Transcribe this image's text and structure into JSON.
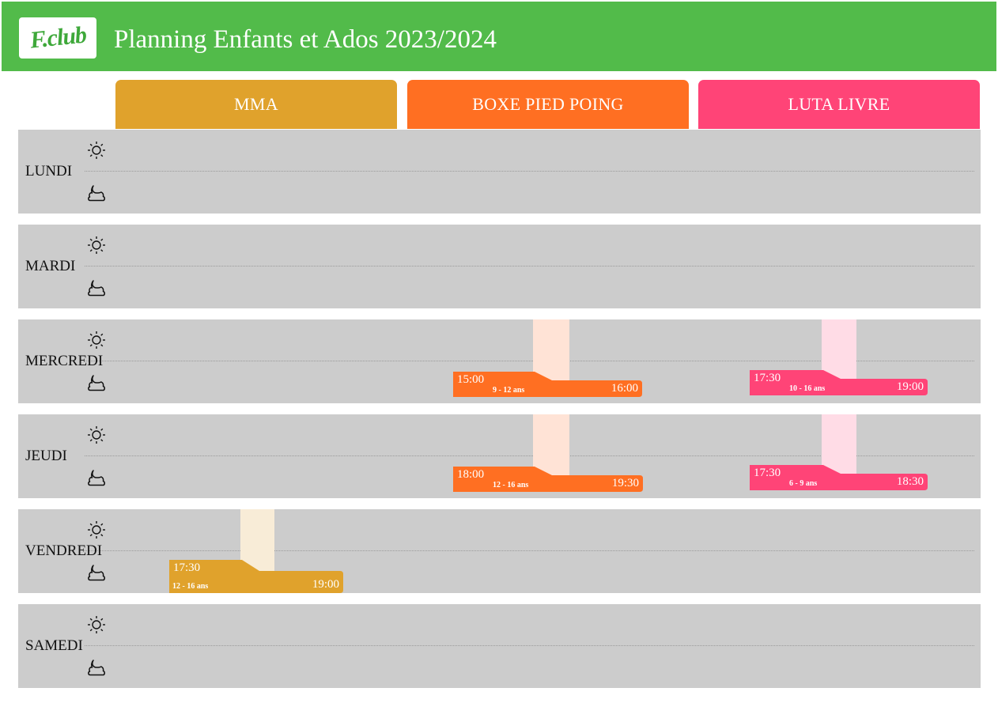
{
  "header": {
    "logo_text": "F.club",
    "title": "Planning Enfants et Ados 2023/2024",
    "background": "#52bb4a"
  },
  "columns": [
    {
      "label": "MMA",
      "color": "#e0a22c"
    },
    {
      "label": "BOXE PIED POING",
      "color": "#ff6f22"
    },
    {
      "label": "LUTA LIVRE",
      "color": "#ff4477"
    }
  ],
  "periods": {
    "morning_icon": "sun-icon",
    "evening_icon": "moon-icon"
  },
  "days": [
    {
      "label": "LUNDI",
      "sessions": []
    },
    {
      "label": "MARDI",
      "sessions": []
    },
    {
      "label": "MERCREDI",
      "sessions": [
        {
          "column": "BOXE PIED POING",
          "start": "15:00",
          "end": "16:00",
          "age": "9 - 12 ans"
        },
        {
          "column": "LUTA LIVRE",
          "start": "17:30",
          "end": "19:00",
          "age": "10 - 16 ans"
        }
      ]
    },
    {
      "label": "JEUDI",
      "sessions": [
        {
          "column": "BOXE PIED POING",
          "start": "18:00",
          "end": "19:30",
          "age": "12 - 16 ans"
        },
        {
          "column": "LUTA LIVRE",
          "start": "17:30",
          "end": "18:30",
          "age": "6 - 9 ans"
        }
      ]
    },
    {
      "label": "VENDREDI",
      "sessions": [
        {
          "column": "MMA",
          "start": "17:30",
          "end": "19:00",
          "age": "12 - 16 ans"
        }
      ]
    },
    {
      "label": "SAMEDI",
      "sessions": []
    }
  ]
}
